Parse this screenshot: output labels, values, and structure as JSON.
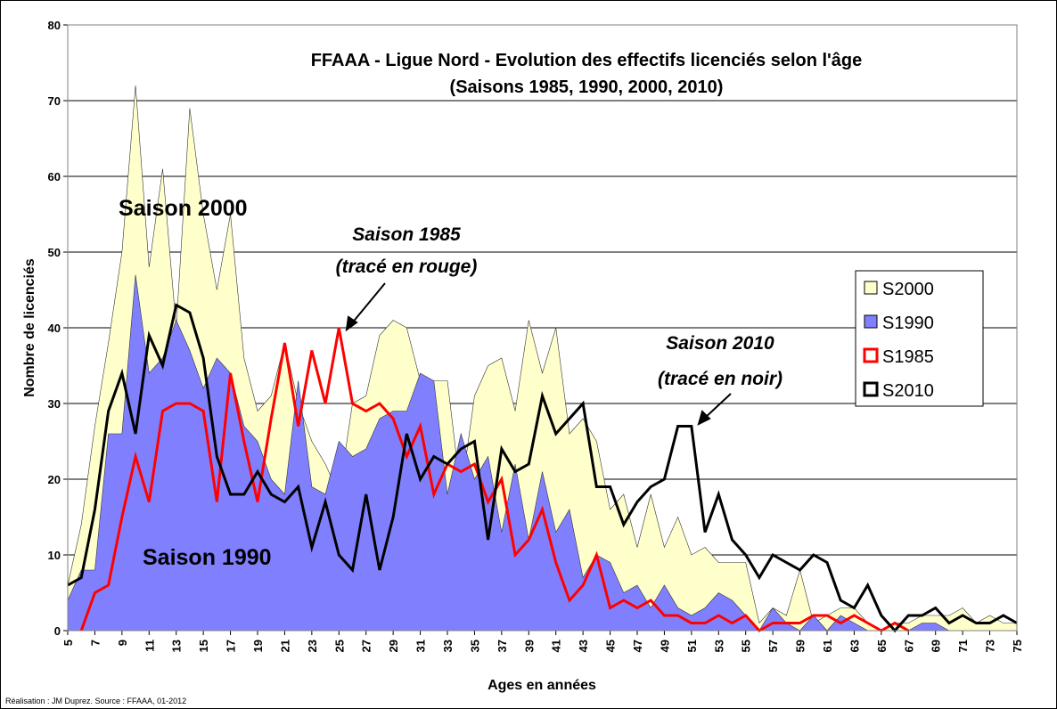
{
  "chart_data": {
    "type": "area",
    "title": [
      "FFAAA - Ligue Nord - Evolution des effectifs licenciés selon l'âge",
      "(Saisons 1985, 1990, 2000, 2010)"
    ],
    "xlabel": "Ages en années",
    "ylabel": "Nombre de licenciés",
    "footer": "Réalisation : JM Duprez. Source : FFAAA, 01-2012",
    "annotations": [
      "Saison 2000",
      "Saison 1990",
      "Saison 1985",
      "(tracé en rouge)",
      "Saison 2010",
      "(tracé en  noir)"
    ],
    "x": [
      5,
      6,
      7,
      8,
      9,
      10,
      11,
      12,
      13,
      14,
      15,
      16,
      17,
      18,
      19,
      20,
      21,
      22,
      23,
      24,
      25,
      26,
      27,
      28,
      29,
      30,
      31,
      32,
      33,
      34,
      35,
      36,
      37,
      38,
      39,
      40,
      41,
      42,
      43,
      44,
      45,
      46,
      47,
      48,
      49,
      50,
      51,
      52,
      53,
      54,
      55,
      56,
      57,
      58,
      59,
      60,
      61,
      62,
      63,
      64,
      65,
      66,
      67,
      68,
      69,
      70,
      71,
      72,
      73,
      74,
      75
    ],
    "xlim": [
      5,
      75
    ],
    "xticks": [
      5,
      7,
      9,
      11,
      13,
      15,
      17,
      19,
      21,
      23,
      25,
      27,
      29,
      31,
      33,
      35,
      37,
      39,
      41,
      43,
      45,
      47,
      49,
      51,
      53,
      55,
      57,
      59,
      61,
      63,
      65,
      67,
      69,
      71,
      73,
      75
    ],
    "ylim": [
      0,
      80
    ],
    "yticks": [
      0,
      10,
      20,
      30,
      40,
      50,
      60,
      70,
      80
    ],
    "grid": true,
    "legend": "right",
    "series": [
      {
        "name": "S2000",
        "type": "area",
        "color": "#FFFFCC",
        "values": [
          6,
          14,
          27,
          38,
          50,
          72,
          48,
          61,
          40,
          69,
          55,
          45,
          55,
          36,
          29,
          31,
          38,
          30,
          25,
          22,
          18,
          30,
          31,
          39,
          41,
          40,
          33,
          33,
          33,
          18,
          31,
          35,
          36,
          29,
          41,
          34,
          40,
          26,
          28,
          25,
          16,
          18,
          11,
          18,
          11,
          15,
          10,
          11,
          9,
          9,
          9,
          1,
          3,
          2,
          8,
          1,
          2,
          3,
          3,
          1,
          0,
          1,
          1,
          2,
          2,
          2,
          3,
          1,
          2,
          1,
          1
        ]
      },
      {
        "name": "S1990",
        "type": "area",
        "color": "#8080FF",
        "values": [
          4,
          8,
          8,
          26,
          26,
          47,
          34,
          36,
          41,
          37,
          32,
          36,
          34,
          27,
          25,
          20,
          18,
          33,
          19,
          18,
          25,
          23,
          24,
          28,
          29,
          29,
          34,
          33,
          18,
          26,
          20,
          23,
          13,
          22,
          12,
          21,
          13,
          16,
          7,
          10,
          9,
          5,
          6,
          3,
          6,
          3,
          2,
          3,
          5,
          4,
          2,
          0,
          3,
          1,
          0,
          2,
          0,
          2,
          1,
          0,
          0,
          0,
          0,
          1,
          1,
          0,
          0,
          0,
          0,
          0,
          0
        ]
      },
      {
        "name": "S1985",
        "type": "line",
        "color": "#FF0000",
        "values": [
          null,
          0,
          5,
          6,
          15,
          23,
          17,
          29,
          30,
          30,
          29,
          17,
          34,
          25,
          17,
          28,
          38,
          27,
          37,
          30,
          40,
          30,
          29,
          30,
          28,
          23,
          27,
          18,
          22,
          21,
          22,
          17,
          20,
          10,
          12,
          16,
          9,
          4,
          6,
          10,
          3,
          4,
          3,
          4,
          2,
          2,
          1,
          1,
          2,
          1,
          2,
          0,
          1,
          1,
          1,
          2,
          2,
          1,
          2,
          1,
          0,
          1,
          0,
          null,
          null,
          null,
          null,
          null,
          null,
          null,
          null
        ]
      },
      {
        "name": "S2010",
        "type": "line",
        "color": "#000000",
        "values": [
          6,
          7,
          16,
          29,
          34,
          26,
          39,
          35,
          43,
          42,
          36,
          23,
          18,
          18,
          21,
          18,
          17,
          19,
          11,
          17,
          10,
          8,
          18,
          8,
          15,
          26,
          20,
          23,
          22,
          24,
          25,
          12,
          24,
          21,
          22,
          31,
          26,
          28,
          30,
          19,
          19,
          14,
          17,
          19,
          20,
          27,
          27,
          13,
          18,
          12,
          10,
          7,
          10,
          9,
          8,
          10,
          9,
          4,
          3,
          6,
          2,
          0,
          2,
          2,
          3,
          1,
          2,
          1,
          1,
          2,
          1
        ]
      }
    ]
  }
}
